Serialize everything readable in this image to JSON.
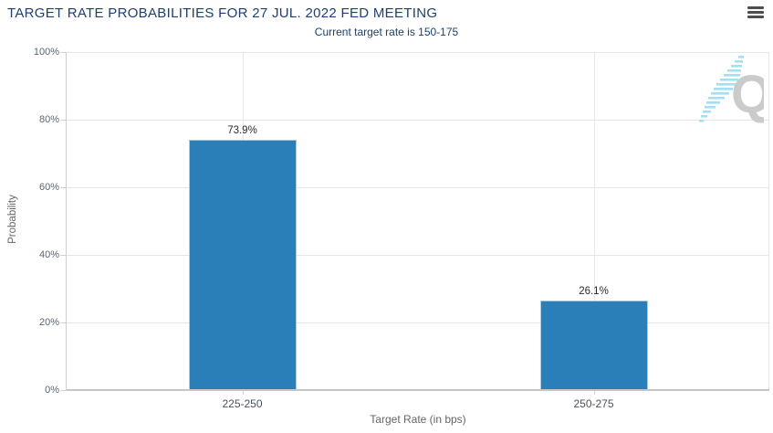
{
  "header": {
    "title": "TARGET RATE PROBABILITIES FOR 27 JUL. 2022 FED MEETING",
    "subtitle": "Current target rate is 150-175"
  },
  "menu": {
    "icon": "hamburger-icon"
  },
  "watermark": {
    "icon": "quandl-q-logo",
    "letter": "Q"
  },
  "colors": {
    "title_text": "#1e3f6f",
    "bar_fill": "#2b7fb9",
    "bar_border": "#a9cbe0",
    "gridline": "#e6e6e6",
    "axis_line": "#c6c6c6",
    "tick_label": "#5b6672",
    "axis_title": "#666666",
    "data_label": "#2c2c2c",
    "menu_icon": "#4d4d4d",
    "watermark_q": "#cbcbcb",
    "watermark_dash": "#a3e0f2"
  },
  "chart_data": {
    "type": "bar",
    "title": "TARGET RATE PROBABILITIES FOR 27 JUL. 2022 FED MEETING",
    "subtitle": "Current target rate is 150-175",
    "categories": [
      "225-250",
      "250-275"
    ],
    "values": [
      73.9,
      26.1
    ],
    "value_labels": [
      "73.9%",
      "26.1%"
    ],
    "xlabel": "Target Rate (in bps)",
    "ylabel": "Probability",
    "ylim": [
      0,
      100
    ],
    "yticks": [
      0,
      20,
      40,
      60,
      80,
      100
    ],
    "ytick_labels": [
      "0%",
      "20%",
      "40%",
      "60%",
      "80%",
      "100%"
    ],
    "grid": true,
    "legend": false
  }
}
